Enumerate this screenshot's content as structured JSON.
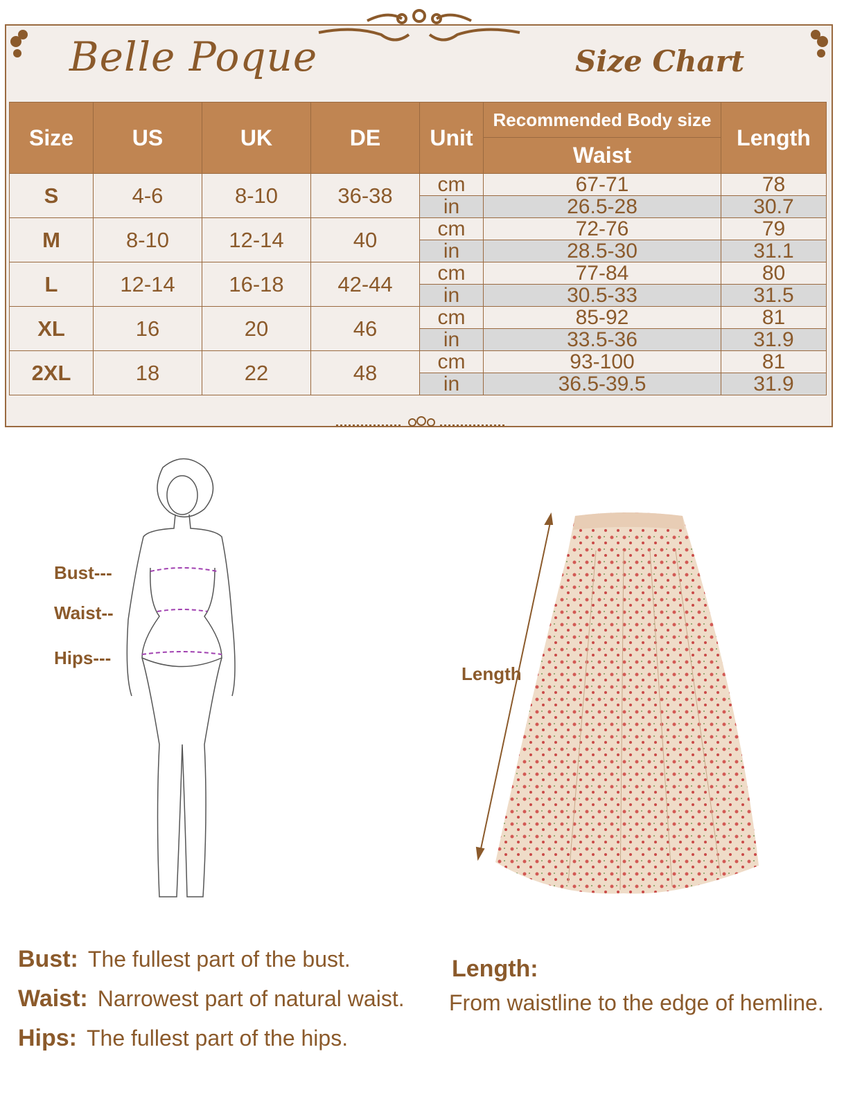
{
  "brand": "Belle Poque",
  "title": "Size Chart",
  "colors": {
    "header": "#c08552",
    "text": "#8b5a2b",
    "inch_row": "#d9d9d9",
    "panel": "#f3eeea"
  },
  "table": {
    "headers": {
      "size": "Size",
      "us": "US",
      "uk": "UK",
      "de": "DE",
      "unit": "Unit",
      "group": "Recommended Body size",
      "waist": "Waist",
      "length": "Length"
    },
    "rows": [
      {
        "size": "S",
        "us": "4-6",
        "uk": "8-10",
        "de": "36-38",
        "cm": {
          "unit": "cm",
          "waist": "67-71",
          "length": "78"
        },
        "in": {
          "unit": "in",
          "waist": "26.5-28",
          "length": "30.7"
        }
      },
      {
        "size": "M",
        "us": "8-10",
        "uk": "12-14",
        "de": "40",
        "cm": {
          "unit": "cm",
          "waist": "72-76",
          "length": "79"
        },
        "in": {
          "unit": "in",
          "waist": "28.5-30",
          "length": "31.1"
        }
      },
      {
        "size": "L",
        "us": "12-14",
        "uk": "16-18",
        "de": "42-44",
        "cm": {
          "unit": "cm",
          "waist": "77-84",
          "length": "80"
        },
        "in": {
          "unit": "in",
          "waist": "30.5-33",
          "length": "31.5"
        }
      },
      {
        "size": "XL",
        "us": "16",
        "uk": "20",
        "de": "46",
        "cm": {
          "unit": "cm",
          "waist": "85-92",
          "length": "81"
        },
        "in": {
          "unit": "in",
          "waist": "33.5-36",
          "length": "31.9"
        }
      },
      {
        "size": "2XL",
        "us": "18",
        "uk": "22",
        "de": "48",
        "cm": {
          "unit": "cm",
          "waist": "93-100",
          "length": "81"
        },
        "in": {
          "unit": "in",
          "waist": "36.5-39.5",
          "length": "31.9"
        }
      }
    ]
  },
  "figure_labels": {
    "bust": "Bust---",
    "waist": "Waist--",
    "hips": "Hips---",
    "length": "Length"
  },
  "descriptions": {
    "bust": {
      "term": "Bust:",
      "text": "The fullest part of the bust."
    },
    "waist": {
      "term": "Waist:",
      "text": "Narrowest part of natural waist."
    },
    "hips": {
      "term": "Hips:",
      "text": "The fullest part of the hips."
    },
    "length": {
      "term": "Length:",
      "text": "From waistline to the edge of  hemline."
    }
  }
}
